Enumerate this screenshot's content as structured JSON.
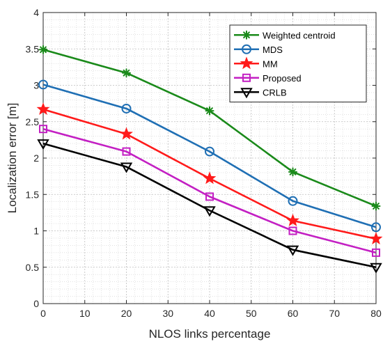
{
  "chart_data": {
    "type": "line",
    "xlabel": "NLOS links percentage",
    "ylabel": "Localization error [m]",
    "xlim": [
      0,
      80
    ],
    "ylim": [
      0,
      4
    ],
    "xticks": [
      0,
      10,
      20,
      30,
      40,
      50,
      60,
      70,
      80
    ],
    "yticks": [
      0,
      0.5,
      1,
      1.5,
      2,
      2.5,
      3,
      3.5,
      4
    ],
    "xtick_labels": [
      "0",
      "10",
      "20",
      "30",
      "40",
      "50",
      "60",
      "70",
      "80"
    ],
    "ytick_labels": [
      "0",
      "0.5",
      "1",
      "1.5",
      "2",
      "2.5",
      "3",
      "3.5",
      "4"
    ],
    "grid": true,
    "minor_grid": true,
    "legend_position": "top-right",
    "x": [
      0,
      20,
      40,
      60,
      80
    ],
    "series": [
      {
        "name": "Weighted centroid",
        "values": [
          3.49,
          3.17,
          2.65,
          1.81,
          1.34
        ],
        "color": "#1a8a1a",
        "marker": "asterisk"
      },
      {
        "name": "MDS",
        "values": [
          3.01,
          2.68,
          2.09,
          1.41,
          1.05
        ],
        "color": "#1f6fb4",
        "marker": "circle"
      },
      {
        "name": "MM",
        "values": [
          2.67,
          2.33,
          1.72,
          1.14,
          0.89
        ],
        "color": "#ff1a1a",
        "marker": "star"
      },
      {
        "name": "Proposed",
        "values": [
          2.4,
          2.09,
          1.47,
          1.0,
          0.7
        ],
        "color": "#c31fc3",
        "marker": "square"
      },
      {
        "name": "CRLB",
        "values": [
          2.2,
          1.88,
          1.28,
          0.74,
          0.5
        ],
        "color": "#000000",
        "marker": "triangle-down"
      }
    ]
  }
}
